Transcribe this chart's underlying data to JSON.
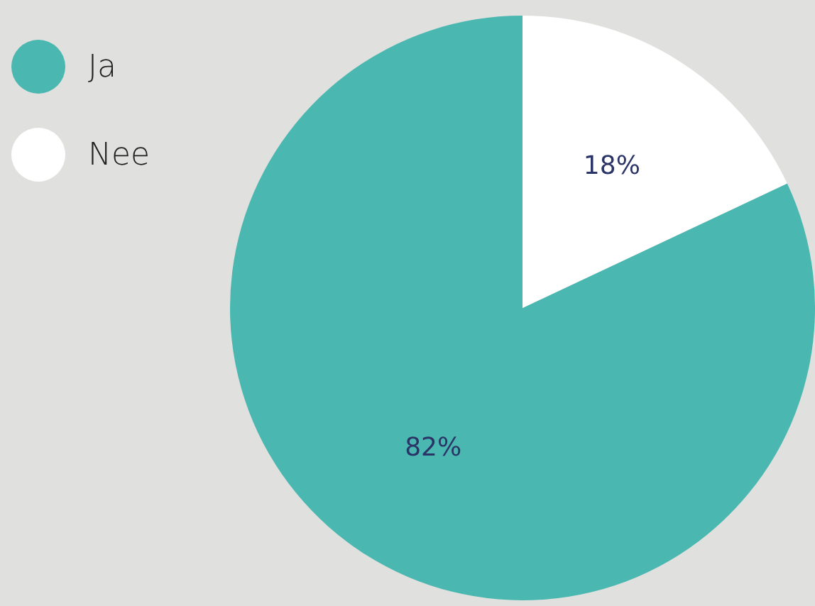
{
  "chart_data": {
    "type": "pie",
    "categories": [
      "Ja",
      "Nee"
    ],
    "values": [
      82,
      18
    ],
    "colors": [
      "#4ab8b0",
      "#ffffff"
    ],
    "value_labels": [
      "82%",
      "18%"
    ],
    "legend": "top left"
  }
}
